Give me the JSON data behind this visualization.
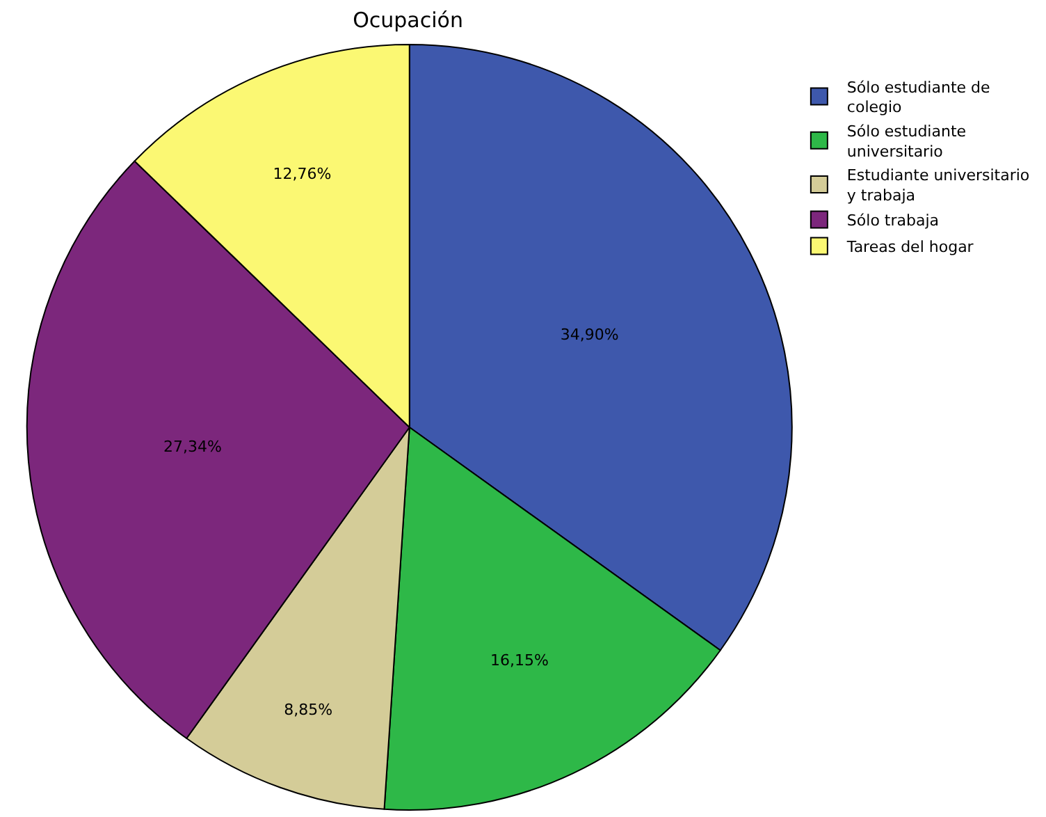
{
  "chart_data": {
    "type": "pie",
    "title": "Ocupación",
    "categories": [
      "Sólo estudiante de  colegio",
      "Sólo estudiante universitario",
      "Estudiante universitario y trabaja",
      "Sólo trabaja",
      "Tareas del hogar"
    ],
    "values": [
      34.9,
      16.15,
      8.85,
      27.34,
      12.76
    ],
    "value_labels": [
      "34,90%",
      "16,15%",
      "8,85%",
      "27,34%",
      "12,76%"
    ],
    "colors": [
      "#3e58ac",
      "#2eb848",
      "#d4cc98",
      "#7c277c",
      "#fbf873"
    ],
    "legend": "top right"
  }
}
